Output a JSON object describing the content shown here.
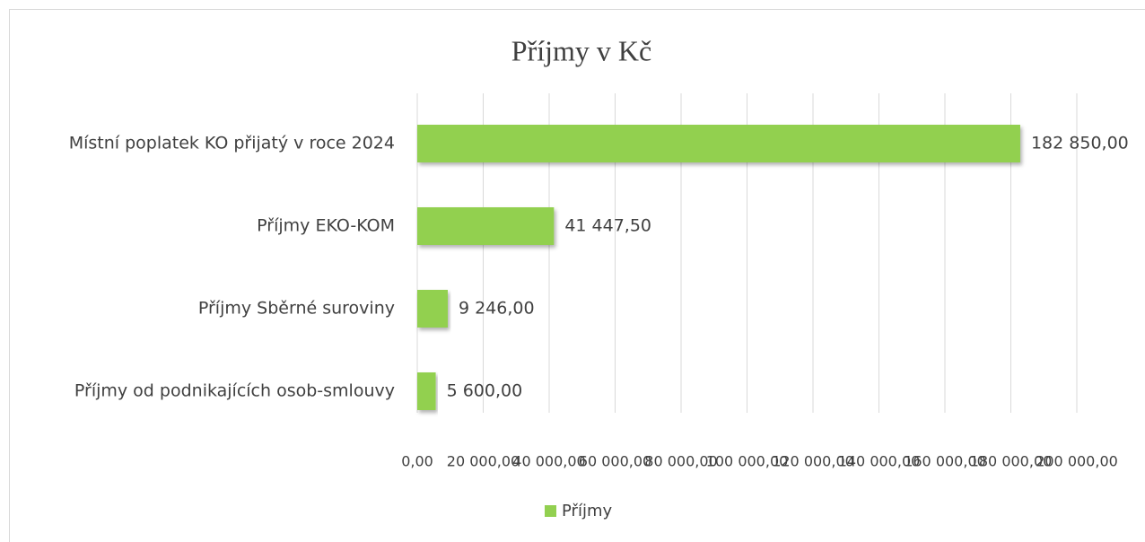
{
  "chart_data": {
    "type": "hbar",
    "title": "Příjmy v Kč",
    "categories": [
      "Místní poplatek KO přijatý v roce 2024",
      "Příjmy EKO-KOM",
      "Příjmy Sběrné suroviny",
      "Příjmy od podnikajících osob-smlouvy"
    ],
    "series": [
      {
        "name": "Příjmy",
        "color": "#92d050",
        "values": [
          182850,
          41447.5,
          9246,
          5600
        ],
        "value_labels": [
          "182 850,00",
          "41 447,50",
          "9 246,00",
          "5 600,00"
        ]
      }
    ],
    "xlim": [
      0,
      200000
    ],
    "xticks": [
      {
        "value": 0,
        "label": "0,00"
      },
      {
        "value": 20000,
        "label": "20 000,00"
      },
      {
        "value": 40000,
        "label": "40 000,00"
      },
      {
        "value": 60000,
        "label": "60 000,00"
      },
      {
        "value": 80000,
        "label": "80 000,00"
      },
      {
        "value": 100000,
        "label": "100 000,00"
      },
      {
        "value": 120000,
        "label": "120 000,00"
      },
      {
        "value": 140000,
        "label": "140 000,00"
      },
      {
        "value": 160000,
        "label": "160 000,00"
      },
      {
        "value": 180000,
        "label": "180 000,00"
      },
      {
        "value": 200000,
        "label": "200 000,00"
      }
    ],
    "grid": true,
    "legend": "bottom"
  }
}
